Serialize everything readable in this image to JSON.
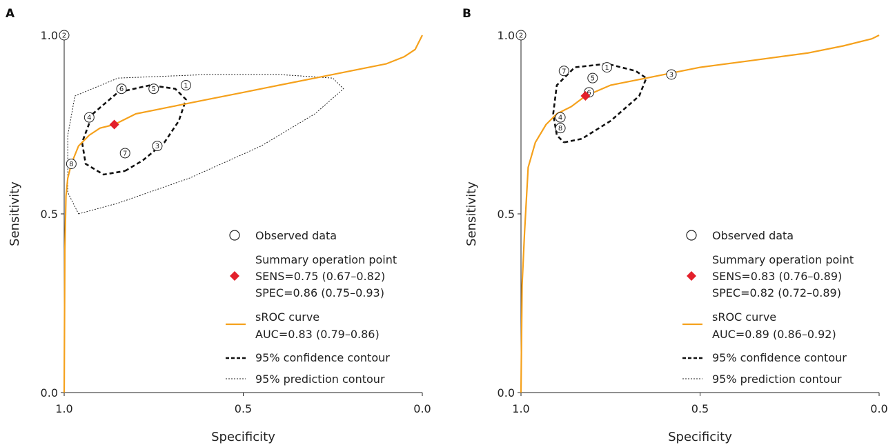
{
  "chart_data": [
    {
      "type": "scatter",
      "panel_label": "A",
      "xlabel": "Specificity",
      "ylabel": "Sensitivity",
      "xlim": [
        1.0,
        0.0
      ],
      "ylim": [
        0.0,
        1.0
      ],
      "x_ticks": [
        "1.0",
        "0.5",
        "0.0"
      ],
      "y_ticks": [
        "0.0",
        "0.5",
        "1.0"
      ],
      "grid": false,
      "legend_position": "bottom-right",
      "legend": {
        "observed": "Observed data",
        "summary": "Summary operation point",
        "summary_sens": "SENS=0.75 (0.67–0.82)",
        "summary_spec": "SPEC=0.86 (0.75–0.93)",
        "sroc": "sROC curve",
        "auc": "AUC=0.83 (0.79–0.86)",
        "confidence": "95% confidence contour",
        "prediction": "95% prediction contour"
      },
      "studies": [
        {
          "label": "1",
          "specificity": 0.66,
          "sensitivity": 0.86
        },
        {
          "label": "2",
          "specificity": 1.0,
          "sensitivity": 1.0
        },
        {
          "label": "3",
          "specificity": 0.74,
          "sensitivity": 0.69
        },
        {
          "label": "4",
          "specificity": 0.93,
          "sensitivity": 0.77
        },
        {
          "label": "5",
          "specificity": 0.75,
          "sensitivity": 0.85
        },
        {
          "label": "6",
          "specificity": 0.84,
          "sensitivity": 0.85
        },
        {
          "label": "7",
          "specificity": 0.83,
          "sensitivity": 0.67
        },
        {
          "label": "8",
          "specificity": 0.98,
          "sensitivity": 0.64
        }
      ],
      "summary_point": {
        "specificity": 0.86,
        "sensitivity": 0.75
      },
      "sroc_curve": [
        [
          1.0,
          0.0
        ],
        [
          0.998,
          0.4
        ],
        [
          0.995,
          0.55
        ],
        [
          0.99,
          0.6
        ],
        [
          0.98,
          0.64
        ],
        [
          0.96,
          0.69
        ],
        [
          0.93,
          0.72
        ],
        [
          0.9,
          0.74
        ],
        [
          0.86,
          0.75
        ],
        [
          0.8,
          0.78
        ],
        [
          0.75,
          0.79
        ],
        [
          0.7,
          0.8
        ],
        [
          0.6,
          0.82
        ],
        [
          0.5,
          0.84
        ],
        [
          0.4,
          0.86
        ],
        [
          0.3,
          0.88
        ],
        [
          0.2,
          0.9
        ],
        [
          0.1,
          0.92
        ],
        [
          0.05,
          0.94
        ],
        [
          0.02,
          0.96
        ],
        [
          0.0,
          1.0
        ]
      ],
      "confidence_contour": [
        [
          0.83,
          0.62
        ],
        [
          0.78,
          0.65
        ],
        [
          0.72,
          0.7
        ],
        [
          0.68,
          0.76
        ],
        [
          0.66,
          0.82
        ],
        [
          0.69,
          0.85
        ],
        [
          0.76,
          0.86
        ],
        [
          0.85,
          0.84
        ],
        [
          0.92,
          0.78
        ],
        [
          0.95,
          0.7
        ],
        [
          0.94,
          0.64
        ],
        [
          0.89,
          0.61
        ],
        [
          0.83,
          0.62
        ]
      ],
      "prediction_contour": [
        [
          0.96,
          0.5
        ],
        [
          0.85,
          0.53
        ],
        [
          0.65,
          0.6
        ],
        [
          0.45,
          0.69
        ],
        [
          0.3,
          0.78
        ],
        [
          0.22,
          0.85
        ],
        [
          0.25,
          0.88
        ],
        [
          0.4,
          0.89
        ],
        [
          0.6,
          0.89
        ],
        [
          0.85,
          0.88
        ],
        [
          0.97,
          0.83
        ],
        [
          0.99,
          0.72
        ],
        [
          0.99,
          0.56
        ],
        [
          0.96,
          0.5
        ]
      ]
    },
    {
      "type": "scatter",
      "panel_label": "B",
      "xlabel": "Specificity",
      "ylabel": "Sensitivity",
      "xlim": [
        1.0,
        0.0
      ],
      "ylim": [
        0.0,
        1.0
      ],
      "x_ticks": [
        "1.0",
        "0.5",
        "0.0"
      ],
      "y_ticks": [
        "0.0",
        "0.5",
        "1.0"
      ],
      "grid": false,
      "legend_position": "bottom-right",
      "legend": {
        "observed": "Observed data",
        "summary": "Summary operation point",
        "summary_sens": "SENS=0.83 (0.76–0.89)",
        "summary_spec": "SPEC=0.82 (0.72–0.89)",
        "sroc": "sROC curve",
        "auc": "AUC=0.89 (0.86–0.92)",
        "confidence": "95% confidence contour",
        "prediction": "95% prediction contour"
      },
      "studies": [
        {
          "label": "1",
          "specificity": 0.76,
          "sensitivity": 0.91
        },
        {
          "label": "2",
          "specificity": 1.0,
          "sensitivity": 1.0
        },
        {
          "label": "3",
          "specificity": 0.58,
          "sensitivity": 0.89
        },
        {
          "label": "4",
          "specificity": 0.89,
          "sensitivity": 0.77
        },
        {
          "label": "5",
          "specificity": 0.8,
          "sensitivity": 0.88
        },
        {
          "label": "6",
          "specificity": 0.81,
          "sensitivity": 0.84
        },
        {
          "label": "7",
          "specificity": 0.88,
          "sensitivity": 0.9
        },
        {
          "label": "8",
          "specificity": 0.89,
          "sensitivity": 0.74
        }
      ],
      "summary_point": {
        "specificity": 0.82,
        "sensitivity": 0.83
      },
      "sroc_curve": [
        [
          1.0,
          0.0
        ],
        [
          0.997,
          0.3
        ],
        [
          0.99,
          0.45
        ],
        [
          0.98,
          0.63
        ],
        [
          0.96,
          0.7
        ],
        [
          0.93,
          0.75
        ],
        [
          0.9,
          0.78
        ],
        [
          0.86,
          0.8
        ],
        [
          0.82,
          0.83
        ],
        [
          0.75,
          0.86
        ],
        [
          0.65,
          0.88
        ],
        [
          0.5,
          0.91
        ],
        [
          0.35,
          0.93
        ],
        [
          0.2,
          0.95
        ],
        [
          0.1,
          0.97
        ],
        [
          0.02,
          0.99
        ],
        [
          0.0,
          1.0
        ]
      ],
      "confidence_contour": [
        [
          0.88,
          0.7
        ],
        [
          0.83,
          0.71
        ],
        [
          0.75,
          0.76
        ],
        [
          0.67,
          0.83
        ],
        [
          0.65,
          0.88
        ],
        [
          0.68,
          0.9
        ],
        [
          0.76,
          0.92
        ],
        [
          0.85,
          0.91
        ],
        [
          0.9,
          0.86
        ],
        [
          0.91,
          0.78
        ],
        [
          0.9,
          0.72
        ],
        [
          0.88,
          0.7
        ]
      ],
      "prediction_contour": []
    }
  ]
}
